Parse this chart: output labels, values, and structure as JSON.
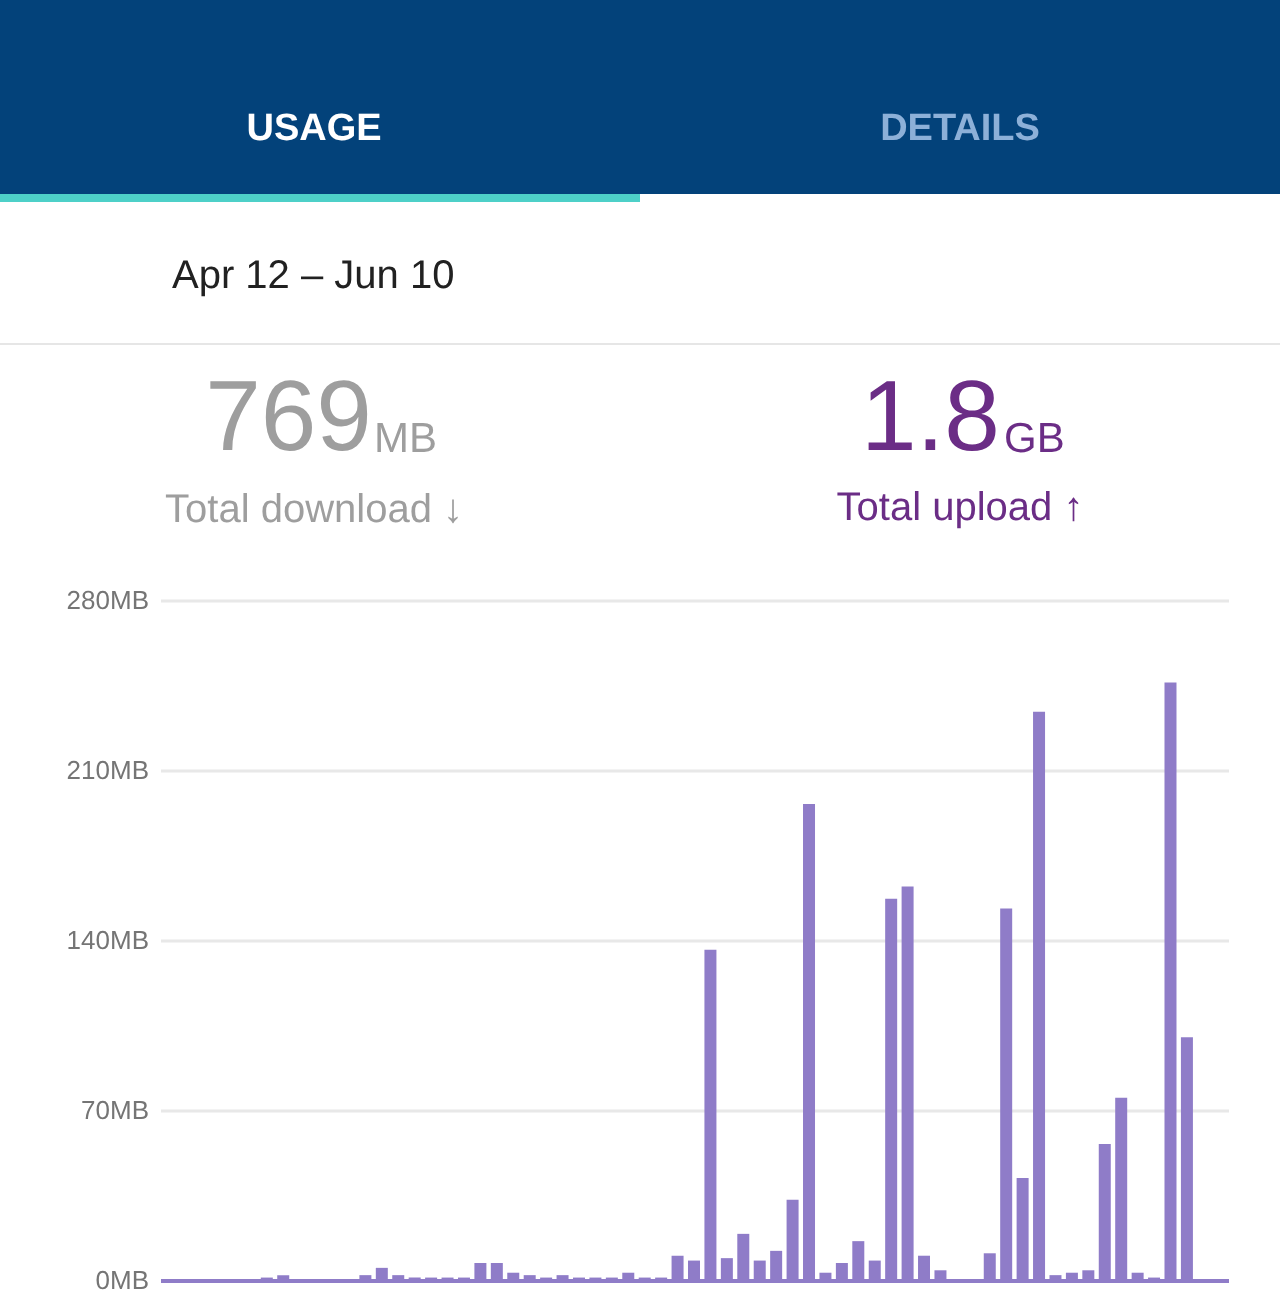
{
  "chart_data": {
    "type": "bar",
    "annotations": [
      "USAGE",
      "DETAILS",
      "Apr 12 – Jun 10",
      "769",
      "MB",
      "Total download ↓",
      "1.8",
      "GB",
      "Total upload ↑"
    ],
    "categories": [
      null,
      null,
      null,
      null,
      null,
      null,
      null,
      null,
      null,
      null,
      null,
      null,
      null,
      null,
      null,
      null,
      null,
      null,
      null,
      null,
      null,
      null,
      null,
      null,
      null,
      null,
      null,
      null,
      null,
      null,
      null,
      null,
      null,
      null,
      null,
      null,
      null,
      null,
      null,
      null,
      null,
      null,
      null,
      null,
      null,
      null,
      null,
      null,
      null,
      null,
      null,
      null,
      null,
      null,
      null,
      null,
      null,
      null,
      null,
      null,
      null,
      null,
      null,
      null,
      null
    ],
    "series": [
      {
        "color": "#8f7cc8",
        "values": [
          0,
          0,
          0,
          0,
          0,
          0,
          1,
          2,
          0,
          0,
          0,
          0,
          2,
          5,
          2,
          1,
          1,
          1,
          1,
          7,
          7,
          3,
          2,
          1,
          2,
          1,
          1,
          1,
          3,
          1,
          1,
          10,
          8,
          136,
          9,
          19,
          8,
          12,
          33,
          196,
          3,
          7,
          16,
          8,
          157,
          162,
          10,
          4,
          0,
          0,
          11,
          153,
          42,
          234,
          2,
          3,
          4,
          56,
          75,
          3,
          1,
          246,
          100,
          0,
          0
        ]
      }
    ],
    "ylim": [
      0,
      280
    ],
    "yticks": [
      {
        "value": 0,
        "label": "0MB"
      },
      {
        "value": 70,
        "label": "70MB"
      },
      {
        "value": 140,
        "label": "140MB"
      },
      {
        "value": 210,
        "label": "210MB"
      },
      {
        "value": 280,
        "label": "280MB"
      }
    ],
    "grid": "y",
    "tick_labels": "y"
  }
}
